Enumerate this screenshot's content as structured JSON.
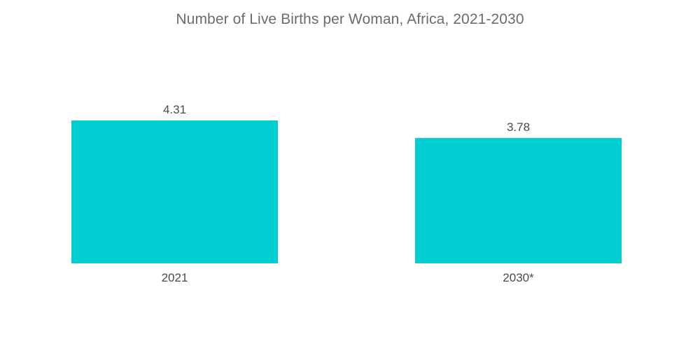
{
  "chart_data": {
    "type": "bar",
    "title": "Number of Live Births per Woman, Africa, 2021-2030",
    "categories": [
      "2021",
      "2030*"
    ],
    "values": [
      4.31,
      3.78
    ],
    "value_labels": [
      "4.31",
      "3.78"
    ],
    "xlabel": "",
    "ylabel": "",
    "ylim": [
      0,
      4.31
    ],
    "grid": false,
    "legend": "none",
    "bar_color": "#00CED1"
  }
}
